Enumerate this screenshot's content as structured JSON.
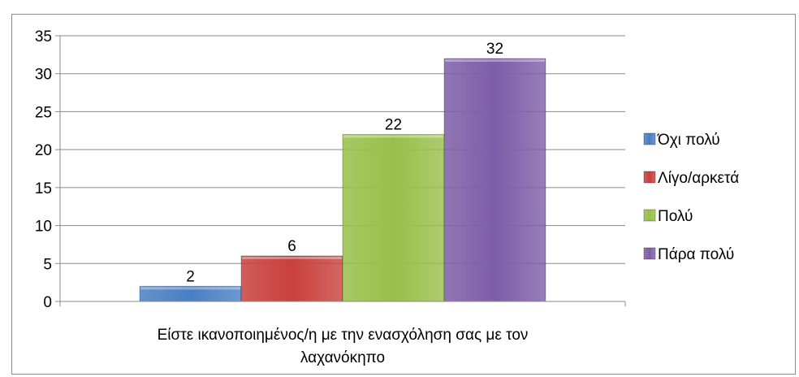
{
  "chart_data": {
    "type": "bar",
    "categories": [
      "Είστε ικανοποιημένος/η με την ενασχόληση σας με τον λαχανόκηπο"
    ],
    "category_lines": [
      "Είστε ικανοποιημένος/η με την ενασχόληση σας με τον",
      "λαχανόκηπο"
    ],
    "series": [
      {
        "name": "Όχι πολύ",
        "values": [
          2
        ],
        "color": "#4a7fc4"
      },
      {
        "name": "Λίγο/αρκετά",
        "values": [
          6
        ],
        "color": "#c9403c"
      },
      {
        "name": "Πολύ",
        "values": [
          22
        ],
        "color": "#98bf4a"
      },
      {
        "name": "Πάρα πολύ",
        "values": [
          32
        ],
        "color": "#7e5da8"
      }
    ],
    "yticks": [
      "0",
      "5",
      "10",
      "15",
      "20",
      "25",
      "30",
      "35"
    ],
    "ylim": [
      0,
      35
    ],
    "grid": true,
    "legend": "right",
    "data_labels": [
      "2",
      "6",
      "22",
      "32"
    ]
  }
}
